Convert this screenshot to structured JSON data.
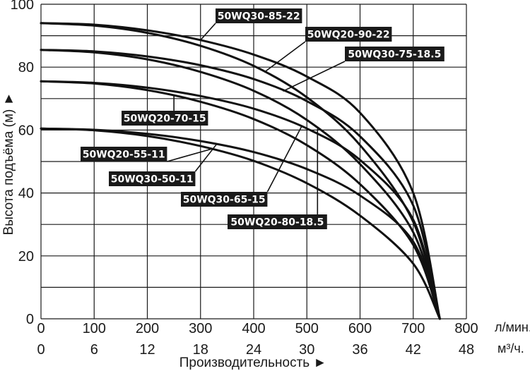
{
  "chart_data": {
    "type": "line",
    "xlabel": "Производительность ►",
    "ylabel": "Высота подъёма (м) ►",
    "x_unit_top": "л/мин.",
    "x_unit_bottom": "м³/ч.",
    "xlim": [
      0,
      800
    ],
    "ylim": [
      0,
      100
    ],
    "x_ticks_top": [
      "0",
      "100",
      "200",
      "300",
      "400",
      "500",
      "600",
      "700",
      "800"
    ],
    "x_ticks_bottom": [
      "0",
      "6",
      "12",
      "18",
      "24",
      "30",
      "36",
      "42",
      "48"
    ],
    "y_ticks": [
      "0",
      "20",
      "40",
      "60",
      "80",
      "100"
    ],
    "grid": true,
    "series": [
      {
        "name": "50WQ30-85-22",
        "shutoff": 94,
        "x": [
          0,
          100,
          200,
          300,
          400,
          500,
          600,
          700,
          750
        ],
        "y": [
          94,
          93.5,
          91.7,
          88.6,
          84,
          77,
          65.5,
          40,
          0
        ]
      },
      {
        "name": "50WQ20-90-22",
        "shutoff": 94,
        "x": [
          0,
          100,
          200,
          300,
          400,
          500,
          600,
          700,
          750
        ],
        "y": [
          94,
          93.2,
          90.9,
          86.8,
          80.4,
          70.4,
          55.2,
          30.8,
          0
        ]
      },
      {
        "name": "50WQ30-75-18.5",
        "shutoff": 85.5,
        "x": [
          0,
          100,
          200,
          300,
          400,
          500,
          600,
          700,
          750
        ],
        "y": [
          85.5,
          85,
          83.4,
          80.6,
          76.2,
          69.2,
          58,
          36,
          0
        ]
      },
      {
        "name": "50WQ20-80-18.5",
        "shutoff": 85.5,
        "x": [
          0,
          100,
          200,
          300,
          400,
          500,
          600,
          700,
          750
        ],
        "y": [
          85.5,
          84.7,
          82.5,
          78.5,
          72.5,
          63.2,
          49.2,
          27.5,
          0
        ]
      },
      {
        "name": "50WQ30-65-15",
        "shutoff": 75.5,
        "x": [
          0,
          100,
          200,
          300,
          400,
          500,
          600,
          700,
          750
        ],
        "y": [
          75.5,
          75,
          73.5,
          70.8,
          66.8,
          60.5,
          50.5,
          31.5,
          0
        ]
      },
      {
        "name": "50WQ20-70-15",
        "shutoff": 75.5,
        "x": [
          0,
          100,
          200,
          300,
          400,
          500,
          600,
          700,
          750
        ],
        "y": [
          75.5,
          74.8,
          72.7,
          69,
          63.5,
          55.2,
          42.8,
          23.5,
          0
        ]
      },
      {
        "name": "50WQ30-50-11",
        "shutoff": 60.5,
        "x": [
          0,
          100,
          200,
          300,
          400,
          500,
          600,
          700,
          750
        ],
        "y": [
          60.5,
          60.1,
          58.8,
          56.5,
          53,
          47.6,
          39.2,
          24.5,
          0
        ]
      },
      {
        "name": "50WQ20-55-11",
        "shutoff": 60.5,
        "x": [
          0,
          100,
          200,
          300,
          400,
          500,
          600,
          700,
          750
        ],
        "y": [
          60.5,
          59.9,
          58.1,
          54.9,
          50.2,
          43.1,
          32.8,
          17.5,
          0
        ]
      }
    ]
  },
  "colors": {
    "line": "#111111",
    "label_bg": "#1a1a1a",
    "label_text": "#ffffff"
  }
}
